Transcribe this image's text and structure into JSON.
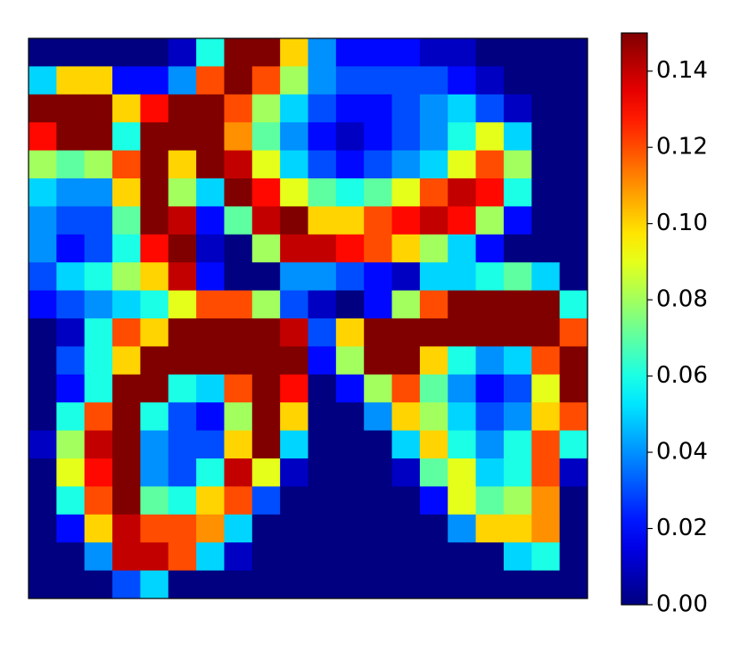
{
  "chart_data": {
    "type": "heatmap",
    "colormap": "jet",
    "clim": [
      0,
      0.15
    ],
    "cticks": [
      {
        "value": 0,
        "label": "0.00"
      },
      {
        "value": 0.02,
        "label": "0.02"
      },
      {
        "value": 0.04,
        "label": "0.04"
      },
      {
        "value": 0.06,
        "label": "0.06"
      },
      {
        "value": 0.08,
        "label": "0.08"
      },
      {
        "value": 0.1,
        "label": "0.10"
      },
      {
        "value": 0.12,
        "label": "0.12"
      },
      {
        "value": 0.14,
        "label": "0.14"
      }
    ],
    "z": [
      [
        0,
        0,
        0,
        0,
        0,
        0.01,
        0.06,
        0.15,
        0.15,
        0.1,
        0.04,
        0.02,
        0.02,
        0.02,
        0.01,
        0.01,
        0,
        0,
        0,
        0
      ],
      [
        0.05,
        0.1,
        0.1,
        0.02,
        0.02,
        0.04,
        0.12,
        0.15,
        0.12,
        0.08,
        0.04,
        0.03,
        0.03,
        0.03,
        0.03,
        0.02,
        0.01,
        0,
        0,
        0
      ],
      [
        0.15,
        0.15,
        0.15,
        0.1,
        0.13,
        0.15,
        0.15,
        0.12,
        0.08,
        0.05,
        0.03,
        0.02,
        0.02,
        0.03,
        0.04,
        0.05,
        0.03,
        0.01,
        0,
        0
      ],
      [
        0.13,
        0.15,
        0.15,
        0.06,
        0.15,
        0.15,
        0.15,
        0.11,
        0.07,
        0.04,
        0.02,
        0.01,
        0.02,
        0.03,
        0.04,
        0.06,
        0.09,
        0.05,
        0,
        0
      ],
      [
        0.08,
        0.07,
        0.08,
        0.12,
        0.15,
        0.1,
        0.15,
        0.14,
        0.09,
        0.05,
        0.03,
        0.02,
        0.03,
        0.04,
        0.05,
        0.09,
        0.12,
        0.08,
        0,
        0
      ],
      [
        0.05,
        0.04,
        0.04,
        0.1,
        0.15,
        0.08,
        0.05,
        0.15,
        0.13,
        0.09,
        0.07,
        0.06,
        0.07,
        0.09,
        0.12,
        0.14,
        0.13,
        0.06,
        0,
        0
      ],
      [
        0.04,
        0.03,
        0.03,
        0.07,
        0.15,
        0.14,
        0.02,
        0.07,
        0.14,
        0.15,
        0.1,
        0.1,
        0.12,
        0.13,
        0.14,
        0.13,
        0.08,
        0.02,
        0,
        0
      ],
      [
        0.04,
        0.02,
        0.03,
        0.06,
        0.13,
        0.15,
        0.01,
        0,
        0.08,
        0.14,
        0.14,
        0.13,
        0.12,
        0.1,
        0.08,
        0.05,
        0.02,
        0,
        0,
        0
      ],
      [
        0.03,
        0.05,
        0.06,
        0.08,
        0.1,
        0.14,
        0.02,
        0,
        0,
        0.04,
        0.04,
        0.03,
        0.02,
        0.01,
        0.05,
        0.05,
        0.06,
        0.07,
        0.05,
        0
      ],
      [
        0.02,
        0.03,
        0.04,
        0.05,
        0.06,
        0.09,
        0.12,
        0.12,
        0.08,
        0.03,
        0.01,
        0,
        0.02,
        0.08,
        0.12,
        0.15,
        0.15,
        0.15,
        0.15,
        0.06
      ],
      [
        0,
        0.01,
        0.06,
        0.12,
        0.1,
        0.15,
        0.15,
        0.15,
        0.15,
        0.14,
        0.03,
        0.1,
        0.15,
        0.15,
        0.15,
        0.15,
        0.15,
        0.15,
        0.15,
        0.12
      ],
      [
        0,
        0.03,
        0.06,
        0.1,
        0.15,
        0.15,
        0.15,
        0.15,
        0.15,
        0.15,
        0.02,
        0.08,
        0.15,
        0.15,
        0.1,
        0.06,
        0.04,
        0.05,
        0.12,
        0.15
      ],
      [
        0,
        0.02,
        0.06,
        0.15,
        0.15,
        0.06,
        0.05,
        0.12,
        0.15,
        0.13,
        0,
        0.02,
        0.08,
        0.12,
        0.07,
        0.04,
        0.02,
        0.03,
        0.09,
        0.15
      ],
      [
        0,
        0.06,
        0.12,
        0.15,
        0.06,
        0.03,
        0.02,
        0.08,
        0.15,
        0.1,
        0,
        0,
        0.04,
        0.1,
        0.08,
        0.05,
        0.03,
        0.04,
        0.1,
        0.12
      ],
      [
        0.01,
        0.08,
        0.14,
        0.15,
        0.04,
        0.03,
        0.03,
        0.1,
        0.15,
        0.05,
        0,
        0,
        0,
        0.05,
        0.1,
        0.06,
        0.04,
        0.06,
        0.12,
        0.06
      ],
      [
        0,
        0.09,
        0.13,
        0.15,
        0.04,
        0.03,
        0.06,
        0.14,
        0.09,
        0.01,
        0,
        0,
        0,
        0.01,
        0.07,
        0.09,
        0.05,
        0.06,
        0.12,
        0.01
      ],
      [
        0,
        0.06,
        0.12,
        0.15,
        0.07,
        0.06,
        0.1,
        0.12,
        0.03,
        0,
        0,
        0,
        0,
        0,
        0.02,
        0.09,
        0.07,
        0.08,
        0.11,
        0
      ],
      [
        0,
        0.02,
        0.1,
        0.14,
        0.12,
        0.12,
        0.11,
        0.05,
        0,
        0,
        0,
        0,
        0,
        0,
        0,
        0.04,
        0.1,
        0.1,
        0.11,
        0
      ],
      [
        0,
        0,
        0.04,
        0.14,
        0.14,
        0.12,
        0.05,
        0.01,
        0,
        0,
        0,
        0,
        0,
        0,
        0,
        0,
        0,
        0.05,
        0.06,
        0
      ],
      [
        0,
        0,
        0,
        0.03,
        0.05,
        0,
        0,
        0,
        0,
        0,
        0,
        0,
        0,
        0,
        0,
        0,
        0,
        0,
        0,
        0
      ]
    ]
  }
}
